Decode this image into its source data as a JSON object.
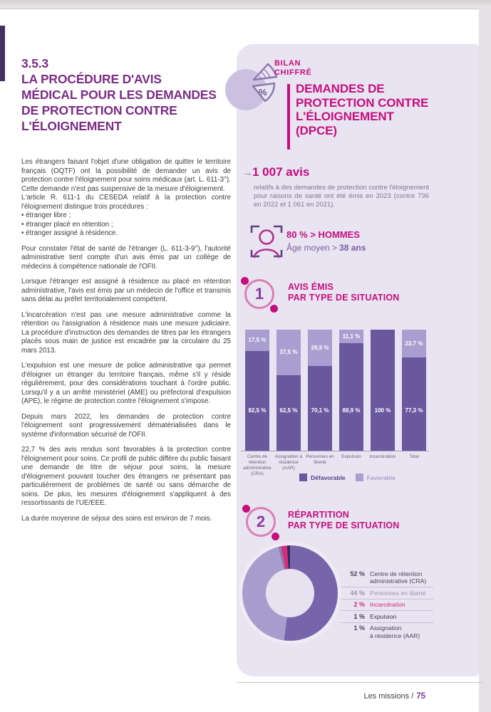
{
  "left_column": {
    "section_number": "3.5.3",
    "title": "LA PROCÉDURE D'AVIS\nMÉDICAL POUR LES DEMANDES\nDE PROTECTION CONTRE\nL'ÉLOIGNEMENT",
    "paragraphs": [
      "Les étrangers faisant l'objet d'une obligation de quitter le territoire français (OQTF) ont la possibilité de demander un avis de protection contre l'éloignement pour soins médicaux (art. L. 611-3°). Cette demande n'est pas suspensive de la mesure d'éloignement.\nL'article R. 611-1 du CESEDA relatif à la protection contre l'éloignement distingue trois procédures :\n• étranger libre ;\n• étranger placé en rétention ;\n• étranger assigné à résidence.",
      "Pour constater l'état de santé de l'étranger (L. 611-3-9°), l'autorité administrative tient compte d'un avis émis par un collège de médecins à compétence nationale de l'OFII.",
      "Lorsque l'étranger est assigné à résidence ou placé en rétention administrative, l'avis est émis par un médecin de l'office et transmis sans délai au préfet territorialement compétent.",
      "L'incarcération n'est pas une mesure administrative comme la rétention ou l'assignation à résidence mais une mesure judiciaire. La procédure d'instruction des demandes de titres par les étrangers placés sous main de justice est encadrée par la circulaire du 25 mars 2013.",
      "L'expulsion est une mesure de police administrative qui permet d'éloigner un étranger du territoire français, même s'il y réside régulièrement, pour des considérations touchant à l'ordre public. Lorsqu'il y a un arrêté ministériel (AME) ou préfectoral d'expulsion (APE), le régime de protection contre l'éloignement s'impose.",
      "Depuis mars 2022, les demandes de protection contre l'éloignement sont progressivement dématérialisées dans le système d'information sécurisé de l'OFII.",
      "22,7 % des avis rendus sont favorables à la protection contre l'éloignement pour soins. Ce profil de public diffère du public faisant une demande de titre de séjour pour soins, la mesure d'éloignement pouvant toucher des étrangers ne présentant pas particulièrement de problèmes de santé ou sans démarche de soins. De plus, les mesures d'éloignement s'appliquent à des ressortissants de l'UE/EEE.",
      "La durée moyenne de séjour des soins est environ de 7 mois."
    ]
  },
  "panel": {
    "kicker": "BILAN\nCHIFFRÉ",
    "title": "DEMANDES DE\nPROTECTION CONTRE\nL'ÉLOIGNEMENT\n(DPCE)",
    "headline_stat": {
      "arrow": "→",
      "value": "1 007 avis",
      "description": "relatifs à des demandes de protection contre l'éloignement pour raisons de santé ont été émis en 2023 (contre 736 en 2022 et 1 061 en 2021)."
    },
    "demographics": {
      "gender": "80 % > HOMMES",
      "age_label": "Âge moyen >",
      "age_value": "38 ans"
    },
    "section1": {
      "number": "1",
      "title": "AVIS ÉMIS\nPAR TYPE DE SITUATION"
    },
    "section2": {
      "number": "2",
      "title": "RÉPARTITION\nPAR TYPE DE SITUATION"
    },
    "pie_icon_symbol": "%"
  },
  "chart_data": [
    {
      "type": "bar",
      "stacked": true,
      "unit": "%",
      "title": "AVIS ÉMIS PAR TYPE DE SITUATION",
      "ylim": [
        0,
        100
      ],
      "legend_position": "bottom",
      "categories": [
        "Centre de rétention administrative (CRA)",
        "Assignation à résidence (AAR)",
        "Personnes en liberté",
        "Expulsion",
        "Incarcération",
        "Total"
      ],
      "series": [
        {
          "name": "Défavorable",
          "color": "#6a589e",
          "legend_text_color": "#53418a",
          "values": [
            82.5,
            62.5,
            70.1,
            88.9,
            100,
            77.3
          ],
          "labels": [
            "82,5 %",
            "62,5 %",
            "70,1 %",
            "88,9 %",
            "100 %",
            "77,3 %"
          ]
        },
        {
          "name": "Favorable",
          "color": "#a89fd0",
          "legend_text_color": "#a89fcb",
          "values": [
            17.5,
            37.5,
            29.9,
            11.1,
            0,
            22.7
          ],
          "labels": [
            "17,5 %",
            "37,5 %",
            "29,9 %",
            "11,1 %",
            "",
            "22,7 %"
          ]
        }
      ]
    },
    {
      "type": "pie",
      "donut": true,
      "title": "RÉPARTITION PAR TYPE DE SITUATION",
      "start_angle_deg": 0,
      "draw_order": [
        0,
        1,
        4,
        2,
        3
      ],
      "slices": [
        {
          "label": "Centre de rétention\nadministrative (CRA)",
          "pct": "52 %",
          "value": 52,
          "color": "#7765ab",
          "text_color": "#4b4257"
        },
        {
          "label": "Personnes en liberté",
          "pct": "44 %",
          "value": 44,
          "color": "#a79dcd",
          "text_color": "#9b93a9"
        },
        {
          "label": "Incarcération",
          "pct": "2 %",
          "value": 2,
          "color": "#d62d78",
          "text_color": "#ce2b74"
        },
        {
          "label": "Expulsion",
          "pct": "1 %",
          "value": 1,
          "color": "#2e2a60",
          "text_color": "#3c3655"
        },
        {
          "label": "Assignation\nà résidence (AAR)",
          "pct": "1 %",
          "value": 1,
          "color": "#8d7bb7",
          "text_color": "#4b4257"
        }
      ]
    }
  ],
  "footer": {
    "label": "Les missions /",
    "page": "75"
  },
  "colors": {
    "magenta": "#c60e7e",
    "section_purple": "#7b2c85",
    "panel_bg": "#e9e4f1",
    "muted_purple_text": "#80768f",
    "bar_defavorable": "#6a589e",
    "bar_favorable": "#a89fd0"
  }
}
